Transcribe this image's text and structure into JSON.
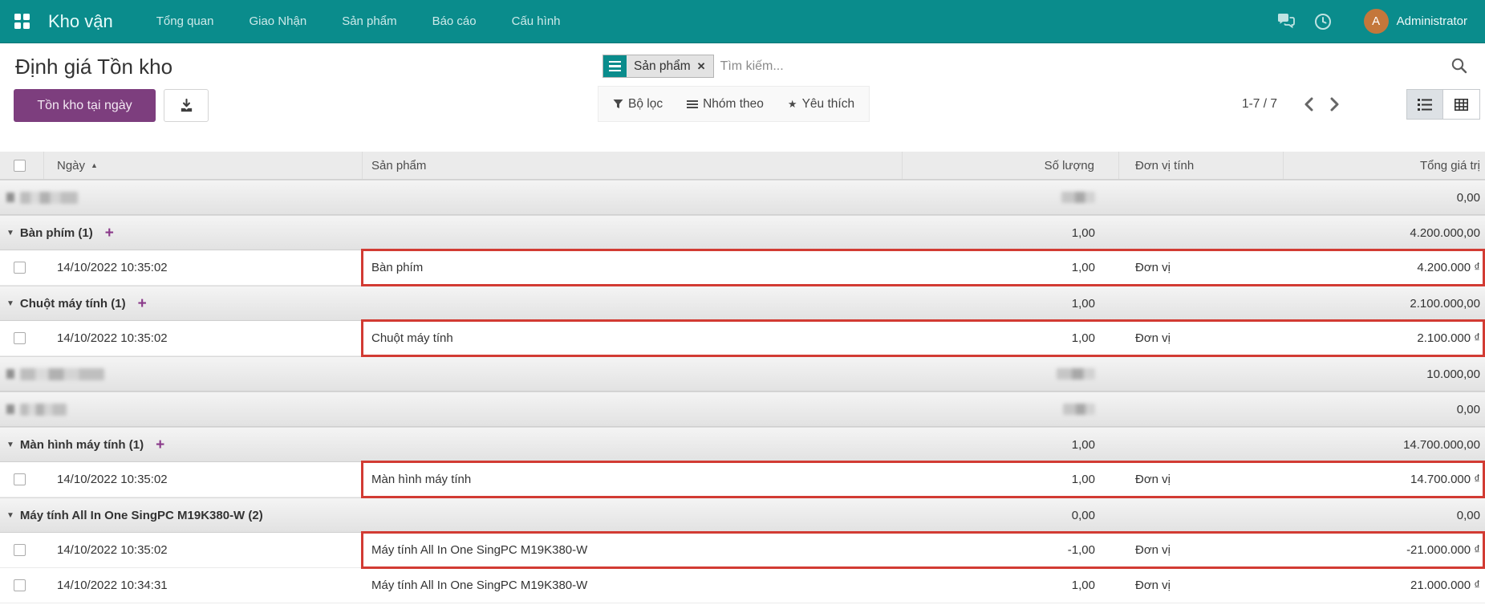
{
  "topbar": {
    "brand": "Kho vận",
    "menu": [
      "Tổng quan",
      "Giao Nhận",
      "Sản phẩm",
      "Báo cáo",
      "Cấu hình"
    ],
    "user": {
      "initial": "A",
      "name": "Administrator"
    }
  },
  "page": {
    "title": "Định giá Tồn kho"
  },
  "actions": {
    "primary_label": "Tồn kho tại ngày"
  },
  "search": {
    "facet_label": "Sản phẩm",
    "placeholder": "Tìm kiếm...",
    "filter_label": "Bộ lọc",
    "group_by_label": "Nhóm theo",
    "favorites_label": "Yêu thích"
  },
  "pager": {
    "range": "1-7 / 7"
  },
  "colors": {
    "topbar_teal": "#0a8c8c",
    "primary_button_purple": "#7d3e7e",
    "avatar_orange": "#c4773b",
    "highlight_red": "#d23b33"
  },
  "table": {
    "columns": [
      "Ngày",
      "Sản phẩm",
      "Số lượng",
      "Đơn vị tính",
      "Tổng giá trị"
    ],
    "rows": [
      {
        "type": "blurred_group",
        "value": "0,00",
        "label_blur_w": 72,
        "qty_blur_w": 42
      },
      {
        "type": "group",
        "label": "Bàn phím (1)",
        "has_add": true,
        "qty": "1,00",
        "value": "4.200.000,00"
      },
      {
        "type": "data",
        "date": "14/10/2022 10:35:02",
        "product": "Bàn phím",
        "qty": "1,00",
        "uom": "Đơn vị",
        "value": "4.200.000 ₫",
        "highlight": true
      },
      {
        "type": "group",
        "label": "Chuột máy tính (1)",
        "has_add": true,
        "qty": "1,00",
        "value": "2.100.000,00"
      },
      {
        "type": "data",
        "date": "14/10/2022 10:35:02",
        "product": "Chuột máy tính",
        "qty": "1,00",
        "uom": "Đơn vị",
        "value": "2.100.000 ₫",
        "highlight": true
      },
      {
        "type": "blurred_group",
        "value": "10.000,00",
        "label_blur_w": 105,
        "qty_blur_w": 48
      },
      {
        "type": "blurred_group",
        "value": "0,00",
        "label_blur_w": 58,
        "qty_blur_w": 40
      },
      {
        "type": "group",
        "label": "Màn hình máy tính (1)",
        "has_add": true,
        "qty": "1,00",
        "value": "14.700.000,00"
      },
      {
        "type": "data",
        "date": "14/10/2022 10:35:02",
        "product": "Màn hình máy tính",
        "qty": "1,00",
        "uom": "Đơn vị",
        "value": "14.700.000 ₫",
        "highlight": true
      },
      {
        "type": "group",
        "label": "Máy tính All In One SingPC M19K380-W (2)",
        "has_add": false,
        "qty": "0,00",
        "value": "0,00"
      },
      {
        "type": "data",
        "date": "14/10/2022 10:35:02",
        "product": "Máy tính All In One SingPC M19K380-W",
        "qty": "-1,00",
        "uom": "Đơn vị",
        "value": "-21.000.000 ₫",
        "highlight": true
      },
      {
        "type": "data",
        "date": "14/10/2022 10:34:31",
        "product": "Máy tính All In One SingPC M19K380-W",
        "qty": "1,00",
        "uom": "Đơn vị",
        "value": "21.000.000 ₫",
        "highlight": false
      }
    ]
  }
}
